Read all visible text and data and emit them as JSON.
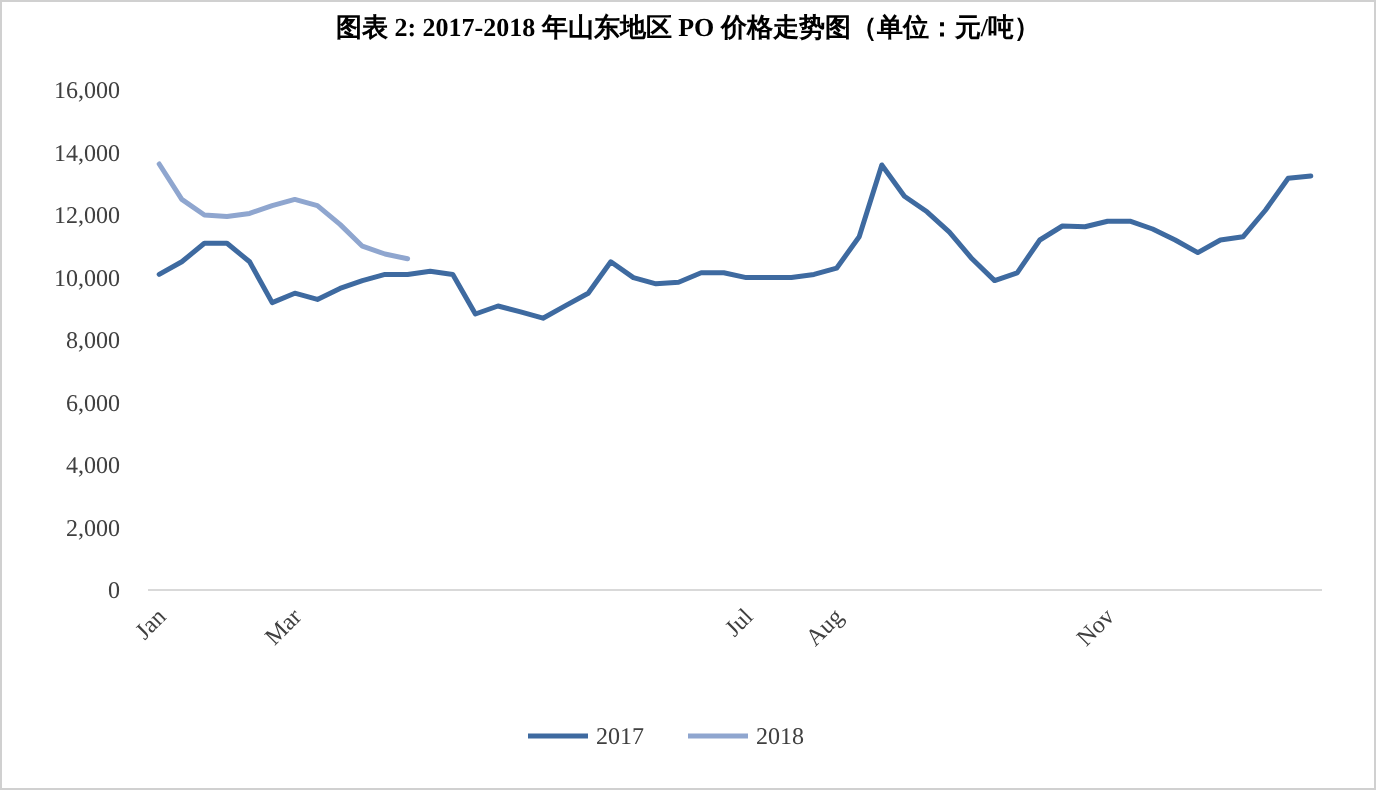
{
  "chart_data": {
    "type": "line",
    "title": "图表 2: 2017-2018 年山东地区 PO 价格走势图（单位：元/吨）",
    "categories": [
      "Jan",
      null,
      null,
      null,
      null,
      null,
      "Mar",
      null,
      null,
      null,
      null,
      null,
      null,
      null,
      null,
      null,
      null,
      null,
      null,
      null,
      null,
      null,
      null,
      null,
      null,
      null,
      "Jul",
      null,
      null,
      null,
      "Aug",
      null,
      null,
      null,
      null,
      null,
      null,
      null,
      null,
      null,
      null,
      null,
      "Nov",
      null,
      null,
      null,
      null,
      null,
      null,
      null,
      null,
      null
    ],
    "series": [
      {
        "name": "2017",
        "color": "#3e6aa0",
        "values": [
          10100,
          10500,
          11100,
          11100,
          10500,
          9200,
          9500,
          9300,
          9650,
          9900,
          10100,
          10100,
          10200,
          10100,
          8830,
          9090,
          8900,
          8700,
          9100,
          9500,
          10500,
          10000,
          9800,
          9850,
          10150,
          10150,
          10000,
          10000,
          10000,
          10100,
          10300,
          11300,
          13600,
          12600,
          12100,
          11450,
          10600,
          9900,
          10150,
          11200,
          11650,
          11620,
          11800,
          11800,
          11550,
          11200,
          10800,
          11200,
          11300,
          12160,
          13180,
          13250
        ]
      },
      {
        "name": "2018",
        "color": "#8fa6cf",
        "values": [
          13630,
          12500,
          12000,
          11950,
          12050,
          12300,
          12500,
          12300,
          11700,
          11000,
          10750,
          10600,
          null,
          null,
          null,
          null,
          null,
          null,
          null,
          null,
          null,
          null,
          null,
          null,
          null,
          null,
          null,
          null,
          null,
          null,
          null,
          null,
          null,
          null,
          null,
          null,
          null,
          null,
          null,
          null,
          null,
          null,
          null,
          null,
          null,
          null,
          null,
          null,
          null,
          null,
          null,
          null
        ]
      }
    ],
    "ylim": [
      0,
      16000
    ],
    "yticks": [
      0,
      {
        "value": 2000,
        "label": "2,000"
      },
      {
        "value": 4000,
        "label": "4,000"
      },
      {
        "value": 6000,
        "label": "6,000"
      },
      {
        "value": 8000,
        "label": "8,000"
      },
      {
        "value": 10000,
        "label": "10,000"
      },
      {
        "value": 12000,
        "label": "12,000"
      },
      {
        "value": 14000,
        "label": "14,000"
      },
      {
        "value": 16000,
        "label": "16,000"
      }
    ],
    "legend": "bottom"
  }
}
